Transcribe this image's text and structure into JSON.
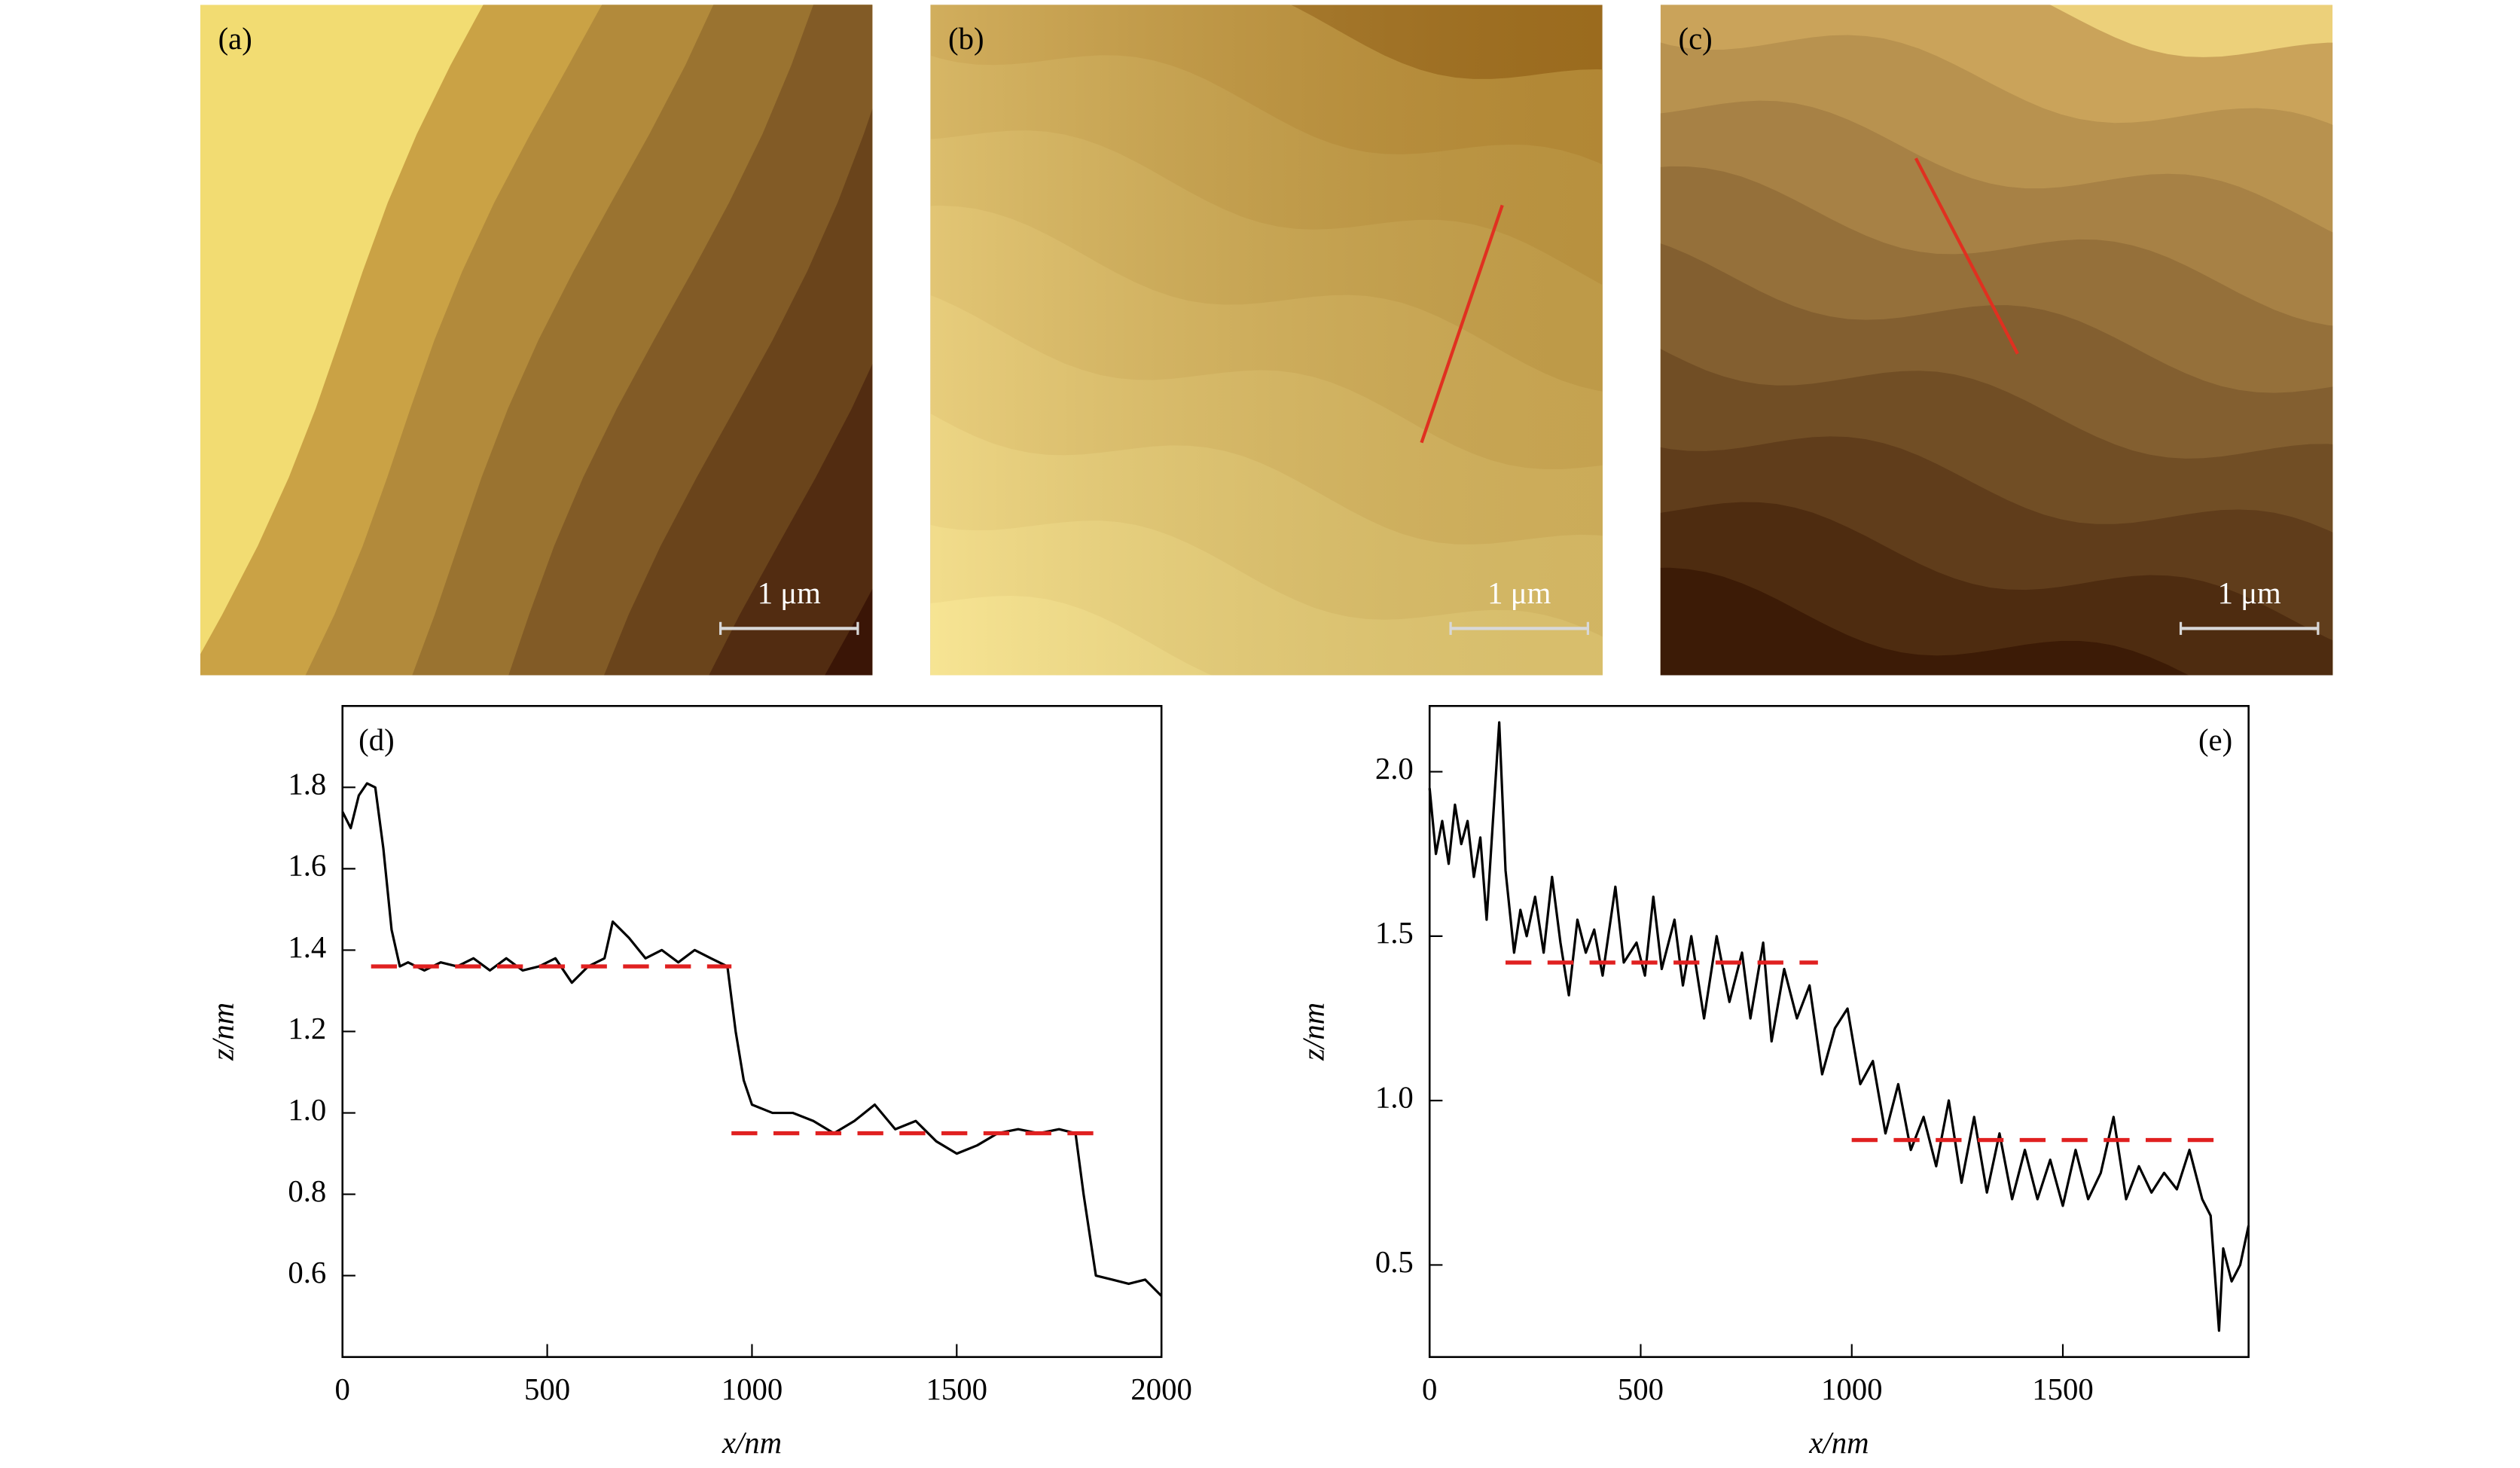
{
  "images": [
    {
      "label": "(a)",
      "scale_bar": "1 μm"
    },
    {
      "label": "(b)",
      "scale_bar": "1 μm"
    },
    {
      "label": "(c)",
      "scale_bar": "1 μm"
    }
  ],
  "chart_data": [
    {
      "type": "line",
      "label": "(d)",
      "xlabel": "x/nm",
      "ylabel": "z/nm",
      "xlim": [
        0,
        2000
      ],
      "ylim": [
        0.4,
        2.0
      ],
      "xticks": [
        0,
        500,
        1000,
        1500,
        2000
      ],
      "yticks": [
        0.6,
        0.8,
        {
          "value": 1,
          "label": "1.0"
        },
        1.2,
        1.4,
        1.6,
        1.8
      ],
      "series": [
        {
          "color": "#000000",
          "x": [
            0,
            20,
            40,
            60,
            80,
            100,
            120,
            140,
            160,
            200,
            240,
            280,
            320,
            360,
            400,
            440,
            480,
            520,
            560,
            600,
            640,
            660,
            700,
            740,
            780,
            820,
            860,
            900,
            940,
            960,
            980,
            1000,
            1050,
            1100,
            1150,
            1200,
            1250,
            1300,
            1350,
            1400,
            1450,
            1500,
            1550,
            1600,
            1650,
            1700,
            1750,
            1790,
            1810,
            1840,
            1880,
            1920,
            1960,
            2000
          ],
          "values": [
            1.74,
            1.7,
            1.78,
            1.81,
            1.8,
            1.65,
            1.45,
            1.36,
            1.37,
            1.35,
            1.37,
            1.36,
            1.38,
            1.35,
            1.38,
            1.35,
            1.36,
            1.38,
            1.32,
            1.36,
            1.38,
            1.47,
            1.43,
            1.38,
            1.4,
            1.37,
            1.4,
            1.38,
            1.36,
            1.2,
            1.08,
            1.02,
            1.0,
            1.0,
            0.98,
            0.95,
            0.98,
            1.02,
            0.96,
            0.98,
            0.93,
            0.9,
            0.92,
            0.95,
            0.96,
            0.95,
            0.96,
            0.95,
            0.8,
            0.6,
            0.59,
            0.58,
            0.59,
            0.55
          ]
        },
        {
          "color": "#e02020",
          "dashed": true,
          "x": [
            70,
            950
          ],
          "values": [
            1.36,
            1.36
          ]
        },
        {
          "color": "#e02020",
          "dashed": true,
          "x": [
            950,
            1870
          ],
          "values": [
            0.95,
            0.95
          ]
        }
      ]
    },
    {
      "type": "line",
      "label": "(e)",
      "xlabel": "x/nm",
      "ylabel": "z/nm",
      "xlim": [
        0,
        1940
      ],
      "ylim": [
        0.22,
        2.2
      ],
      "xticks": [
        0,
        500,
        1000,
        1500
      ],
      "yticks": [
        0.5,
        {
          "value": 1,
          "label": "1.0"
        },
        1.5,
        {
          "value": 2,
          "label": "2.0"
        }
      ],
      "series": [
        {
          "color": "#000000",
          "x": [
            0,
            15,
            30,
            45,
            60,
            75,
            90,
            105,
            120,
            135,
            150,
            165,
            180,
            200,
            215,
            230,
            250,
            270,
            290,
            310,
            330,
            350,
            370,
            390,
            410,
            440,
            460,
            490,
            510,
            530,
            550,
            580,
            600,
            620,
            650,
            680,
            710,
            740,
            760,
            790,
            810,
            840,
            870,
            900,
            930,
            960,
            990,
            1020,
            1050,
            1080,
            1110,
            1140,
            1170,
            1200,
            1230,
            1260,
            1290,
            1320,
            1350,
            1380,
            1410,
            1440,
            1470,
            1500,
            1530,
            1560,
            1590,
            1620,
            1650,
            1680,
            1710,
            1740,
            1770,
            1800,
            1830,
            1850,
            1870,
            1880,
            1900,
            1920,
            1940
          ],
          "values": [
            1.95,
            1.75,
            1.85,
            1.72,
            1.9,
            1.78,
            1.85,
            1.68,
            1.8,
            1.55,
            1.85,
            2.15,
            1.7,
            1.45,
            1.58,
            1.5,
            1.62,
            1.45,
            1.68,
            1.48,
            1.32,
            1.55,
            1.45,
            1.52,
            1.38,
            1.65,
            1.42,
            1.48,
            1.38,
            1.62,
            1.4,
            1.55,
            1.35,
            1.5,
            1.25,
            1.5,
            1.3,
            1.45,
            1.25,
            1.48,
            1.18,
            1.4,
            1.25,
            1.35,
            1.08,
            1.22,
            1.28,
            1.05,
            1.12,
            0.9,
            1.05,
            0.85,
            0.95,
            0.8,
            1.0,
            0.75,
            0.95,
            0.72,
            0.9,
            0.7,
            0.85,
            0.7,
            0.82,
            0.68,
            0.85,
            0.7,
            0.78,
            0.95,
            0.7,
            0.8,
            0.72,
            0.78,
            0.73,
            0.85,
            0.7,
            0.65,
            0.3,
            0.55,
            0.45,
            0.5,
            0.62
          ]
        },
        {
          "color": "#e02020",
          "dashed": true,
          "x": [
            180,
            920
          ],
          "values": [
            1.42,
            1.42
          ]
        },
        {
          "color": "#e02020",
          "dashed": true,
          "x": [
            1000,
            1870
          ],
          "values": [
            0.88,
            0.88
          ]
        }
      ]
    }
  ]
}
